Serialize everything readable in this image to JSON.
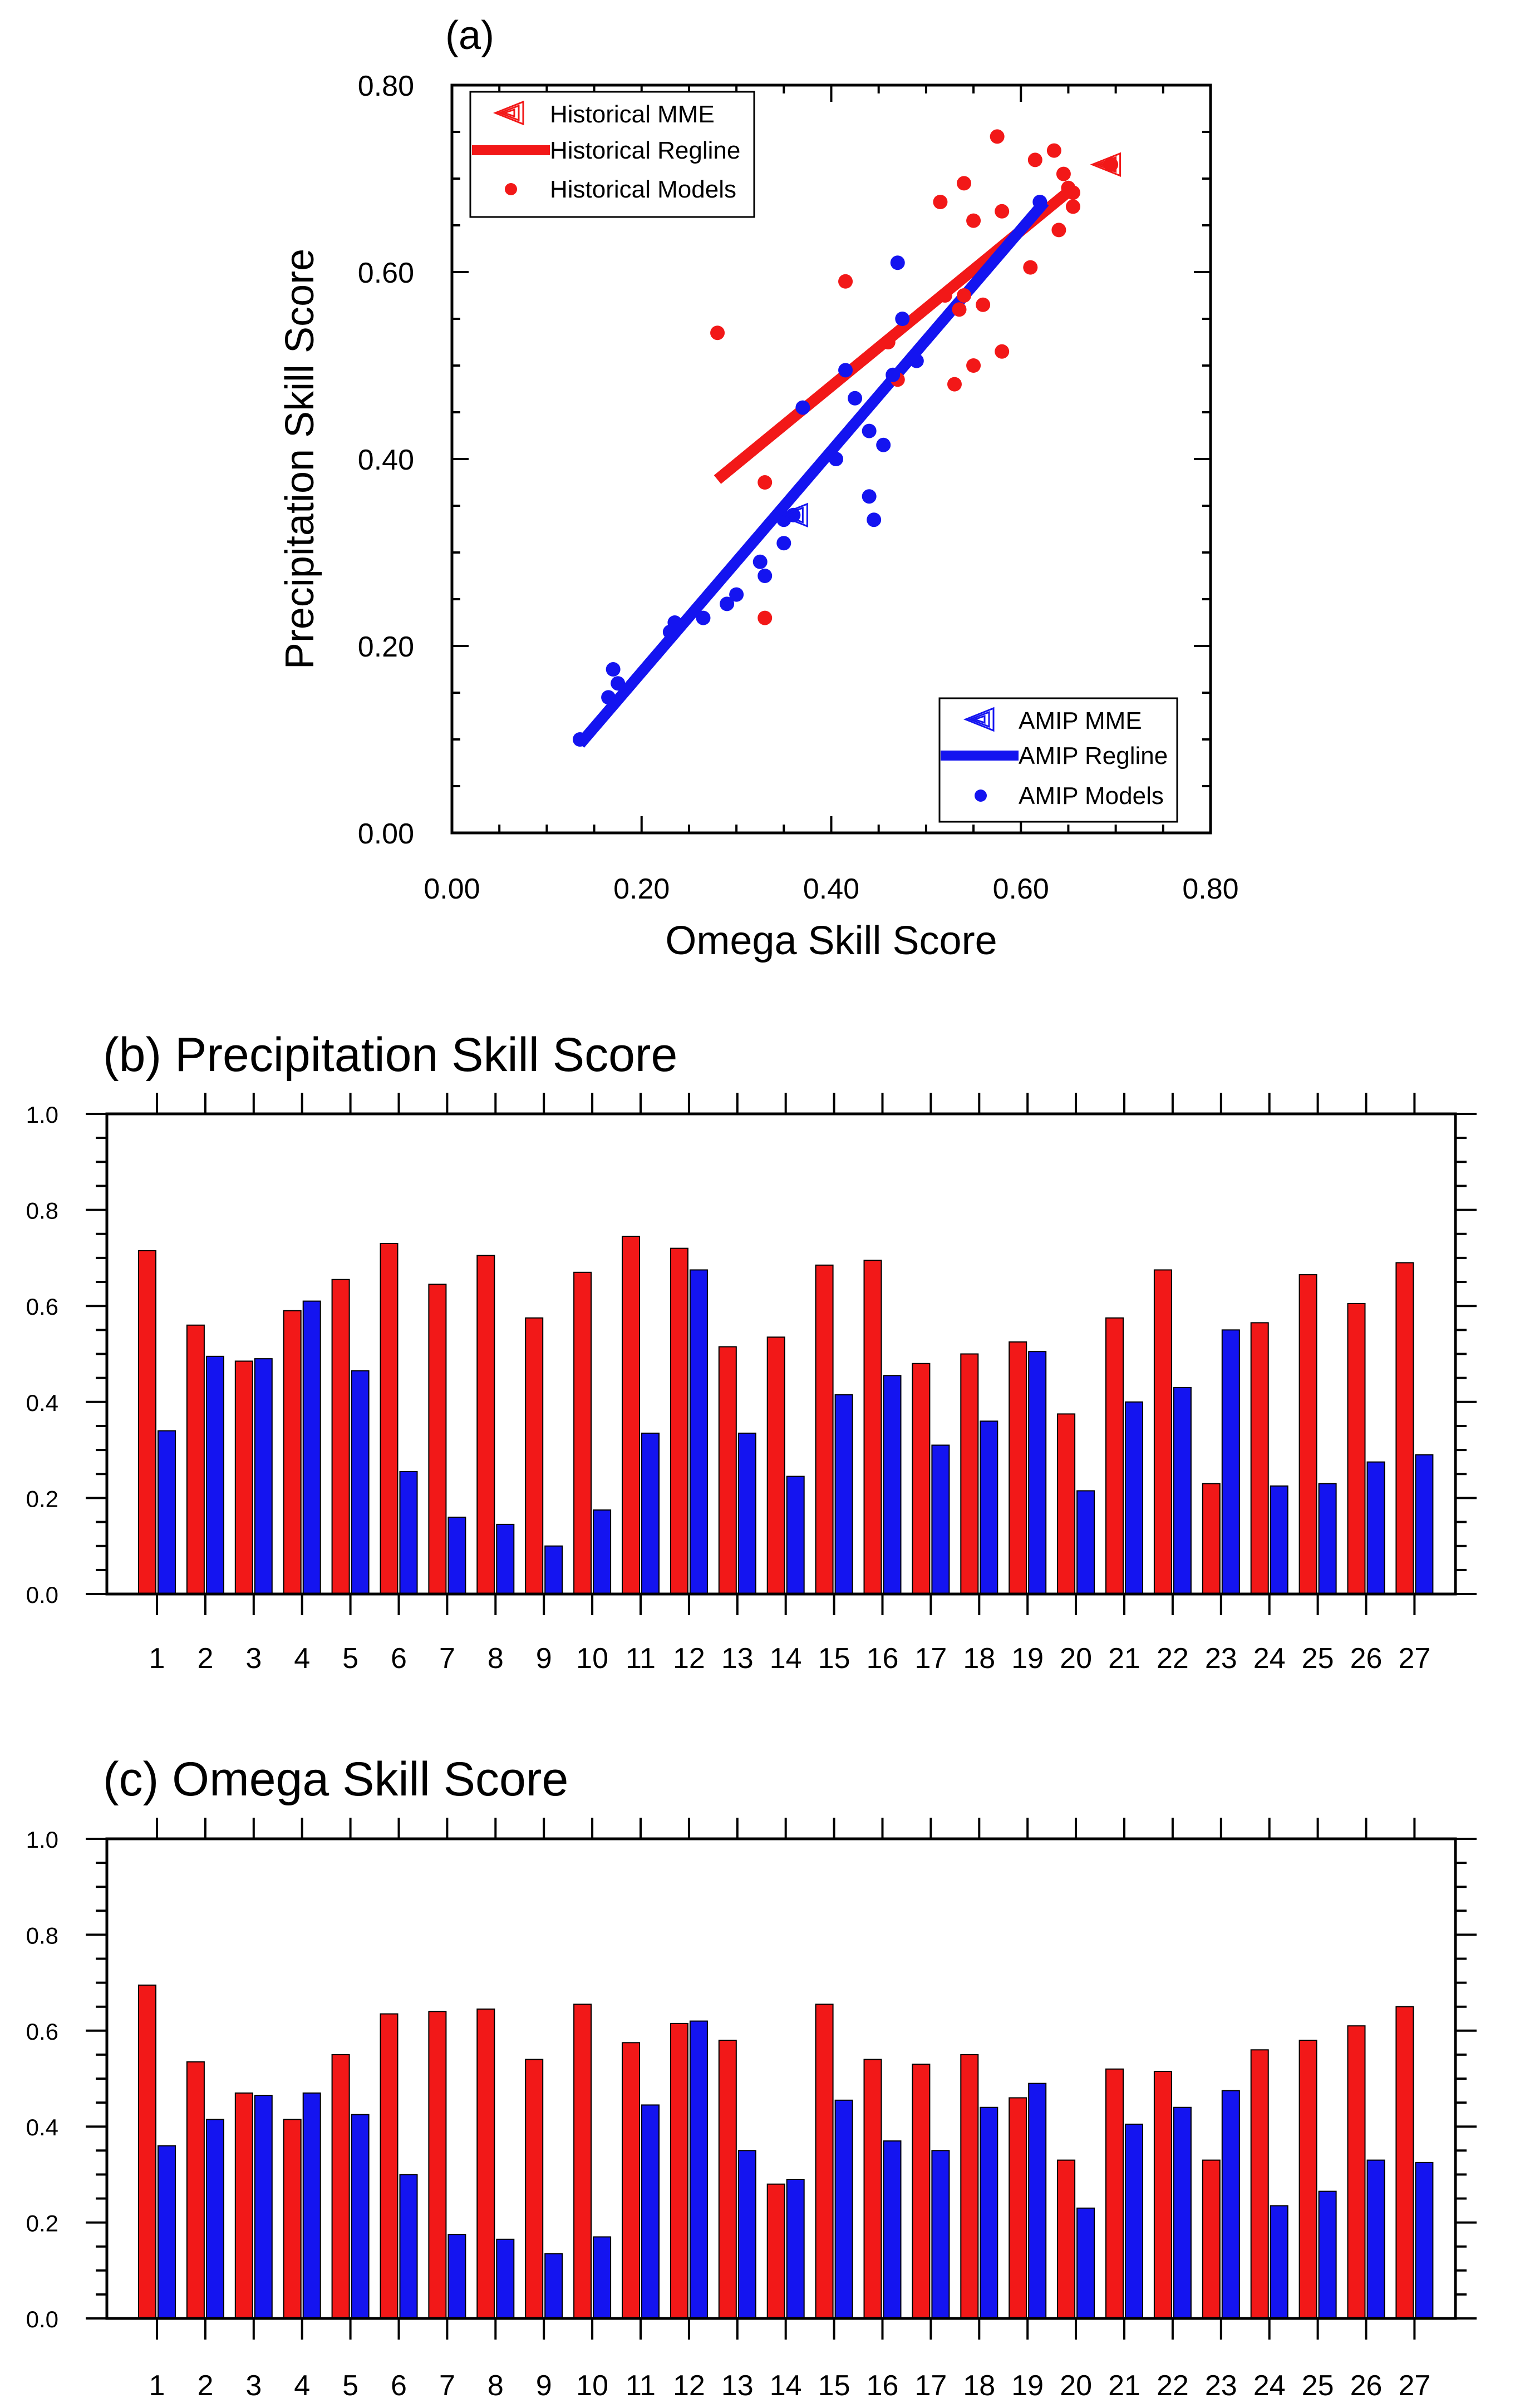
{
  "colors": {
    "historical": "#f21818",
    "amip": "#1414f0",
    "axis": "#000000"
  },
  "chart_data": [
    {
      "type": "scatter",
      "panel_label": "(a)",
      "xlabel": "Omega Skill Score",
      "ylabel": "Precipitation Skill Score",
      "xlim": [
        0,
        0.8
      ],
      "ylim": [
        0,
        0.8
      ],
      "x_ticks": [
        "0.00",
        "0.20",
        "0.40",
        "0.60",
        "0.80"
      ],
      "y_ticks": [
        "0.00",
        "0.20",
        "0.40",
        "0.60",
        "0.80"
      ],
      "legends": [
        {
          "position": "top-left",
          "entries": [
            "Historical MME",
            "Historical Regline",
            "Historical Models"
          ]
        },
        {
          "position": "bottom-right",
          "entries": [
            "AMIP MME",
            "AMIP Regline",
            "AMIP Models"
          ]
        }
      ],
      "series": [
        {
          "name": "Historical Models",
          "x": [
            0.695,
            0.535,
            0.47,
            0.415,
            0.55,
            0.635,
            0.64,
            0.645,
            0.54,
            0.655,
            0.575,
            0.615,
            0.58,
            0.28,
            0.655,
            0.54,
            0.53,
            0.55,
            0.46,
            0.33,
            0.52,
            0.515,
            0.33,
            0.56,
            0.58,
            0.61,
            0.65
          ],
          "y": [
            0.715,
            0.56,
            0.485,
            0.59,
            0.655,
            0.73,
            0.645,
            0.705,
            0.575,
            0.67,
            0.745,
            0.72,
            0.515,
            0.535,
            0.685,
            0.695,
            0.48,
            0.5,
            0.525,
            0.375,
            0.575,
            0.675,
            0.23,
            0.565,
            0.665,
            0.605,
            0.69
          ]
        },
        {
          "name": "AMIP Models",
          "x": [
            0.36,
            0.415,
            0.465,
            0.47,
            0.425,
            0.3,
            0.175,
            0.165,
            0.135,
            0.17,
            0.445,
            0.62,
            0.35,
            0.29,
            0.455,
            0.37,
            0.35,
            0.44,
            0.49,
            0.23,
            0.405,
            0.44,
            0.475,
            0.235,
            0.265,
            0.33,
            0.325
          ],
          "y": [
            0.34,
            0.495,
            0.49,
            0.61,
            0.465,
            0.255,
            0.16,
            0.145,
            0.1,
            0.175,
            0.335,
            0.675,
            0.335,
            0.245,
            0.415,
            0.455,
            0.31,
            0.36,
            0.505,
            0.215,
            0.4,
            0.43,
            0.55,
            0.225,
            0.23,
            0.275,
            0.29
          ]
        }
      ],
      "mme": [
        {
          "name": "Historical MME",
          "x": 0.69,
          "y": 0.715
        },
        {
          "name": "AMIP MME",
          "x": 0.36,
          "y": 0.34
        }
      ],
      "reglines": [
        {
          "name": "Historical Regline",
          "x": [
            0.28,
            0.655
          ],
          "y": [
            0.378,
            0.69
          ]
        },
        {
          "name": "AMIP Regline",
          "x": [
            0.135,
            0.625
          ],
          "y": [
            0.095,
            0.675
          ]
        }
      ]
    },
    {
      "type": "bar",
      "title": "(b) Precipitation Skill Score",
      "categories": [
        "1",
        "2",
        "3",
        "4",
        "5",
        "6",
        "7",
        "8",
        "9",
        "10",
        "11",
        "12",
        "13",
        "14",
        "15",
        "16",
        "17",
        "18",
        "19",
        "20",
        "21",
        "22",
        "23",
        "24",
        "25",
        "26",
        "27"
      ],
      "ylim": [
        0,
        1.0
      ],
      "y_ticks": [
        "0.0",
        "0.2",
        "0.4",
        "0.6",
        "0.8",
        "1.0"
      ],
      "series": [
        {
          "name": "Historical",
          "values": [
            0.715,
            0.56,
            0.485,
            0.59,
            0.655,
            0.73,
            0.645,
            0.705,
            0.575,
            0.67,
            0.745,
            0.72,
            0.515,
            0.535,
            0.685,
            0.695,
            0.48,
            0.5,
            0.525,
            0.375,
            0.575,
            0.675,
            0.23,
            0.565,
            0.665,
            0.605,
            0.69
          ]
        },
        {
          "name": "AMIP",
          "values": [
            0.34,
            0.495,
            0.49,
            0.61,
            0.465,
            0.255,
            0.16,
            0.145,
            0.1,
            0.175,
            0.335,
            0.675,
            0.335,
            0.245,
            0.415,
            0.455,
            0.31,
            0.36,
            0.505,
            0.215,
            0.4,
            0.43,
            0.55,
            0.225,
            0.23,
            0.275,
            0.29
          ]
        }
      ]
    },
    {
      "type": "bar",
      "title": "(c) Omega Skill Score",
      "categories": [
        "1",
        "2",
        "3",
        "4",
        "5",
        "6",
        "7",
        "8",
        "9",
        "10",
        "11",
        "12",
        "13",
        "14",
        "15",
        "16",
        "17",
        "18",
        "19",
        "20",
        "21",
        "22",
        "23",
        "24",
        "25",
        "26",
        "27"
      ],
      "ylim": [
        0,
        1.0
      ],
      "y_ticks": [
        "0.0",
        "0.2",
        "0.4",
        "0.6",
        "0.8",
        "1.0"
      ],
      "series": [
        {
          "name": "Historical",
          "values": [
            0.695,
            0.535,
            0.47,
            0.415,
            0.55,
            0.635,
            0.64,
            0.645,
            0.54,
            0.655,
            0.575,
            0.615,
            0.58,
            0.28,
            0.655,
            0.54,
            0.53,
            0.55,
            0.46,
            0.33,
            0.52,
            0.515,
            0.33,
            0.56,
            0.58,
            0.61,
            0.65
          ]
        },
        {
          "name": "AMIP",
          "values": [
            0.36,
            0.415,
            0.465,
            0.47,
            0.425,
            0.3,
            0.175,
            0.165,
            0.135,
            0.17,
            0.445,
            0.62,
            0.35,
            0.29,
            0.455,
            0.37,
            0.35,
            0.44,
            0.49,
            0.23,
            0.405,
            0.44,
            0.475,
            0.235,
            0.265,
            0.33,
            0.325
          ]
        }
      ]
    }
  ]
}
